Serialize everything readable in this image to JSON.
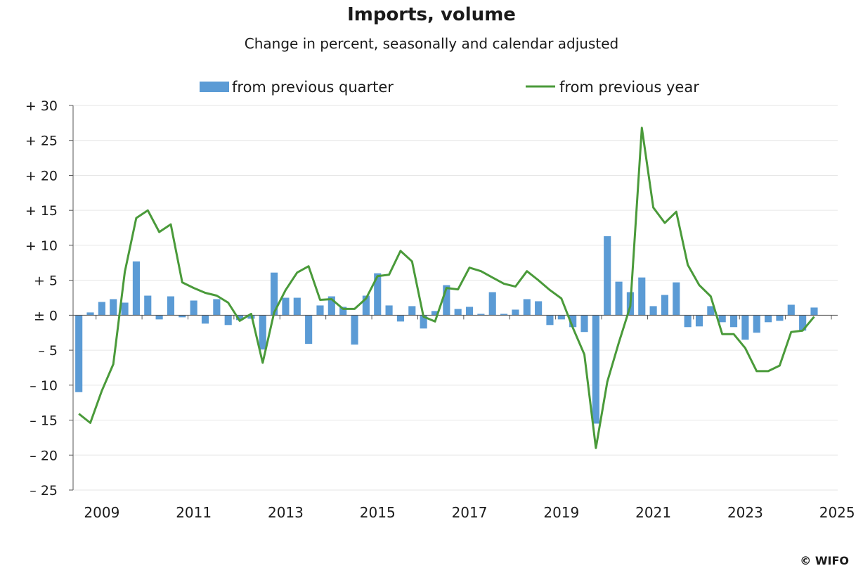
{
  "chart_data": {
    "type": "bar+line",
    "title": "Imports, volume",
    "subtitle": "Change in percent, seasonally and calendar adjusted",
    "legend_position": "top",
    "grid": true,
    "ylim": [
      -25,
      30
    ],
    "y_ticks": [
      {
        "value": 30,
        "label": "+ 30"
      },
      {
        "value": 25,
        "label": "+ 25"
      },
      {
        "value": 20,
        "label": "+ 20"
      },
      {
        "value": 15,
        "label": "+ 15"
      },
      {
        "value": 10,
        "label": "+ 10"
      },
      {
        "value": 5,
        "label": "+ 5"
      },
      {
        "value": 0,
        "label": "± 0"
      },
      {
        "value": -5,
        "label": "– 5"
      },
      {
        "value": -10,
        "label": "– 10"
      },
      {
        "value": -15,
        "label": "– 15"
      },
      {
        "value": -20,
        "label": "– 20"
      },
      {
        "value": -25,
        "label": "– 25"
      }
    ],
    "x_labels": [
      "2009",
      "2011",
      "2013",
      "2015",
      "2017",
      "2019",
      "2021",
      "2023",
      "2025"
    ],
    "start_quarter": "2008Q3",
    "series": [
      {
        "name": "from previous quarter",
        "kind": "bar",
        "color": "#5b9bd5",
        "values": [
          -11.0,
          0.4,
          1.9,
          2.3,
          1.8,
          7.7,
          2.8,
          -0.6,
          2.7,
          -0.3,
          2.1,
          -1.2,
          2.3,
          -1.4,
          -0.7,
          -0.5,
          -4.9,
          6.1,
          2.5,
          2.5,
          -4.1,
          1.4,
          2.7,
          1.2,
          -4.2,
          2.8,
          6.0,
          1.4,
          -0.9,
          1.3,
          -1.9,
          0.6,
          4.3,
          0.9,
          1.2,
          0.2,
          3.3,
          0.2,
          0.8,
          2.3,
          2.0,
          -1.4,
          -0.6,
          -1.7,
          -2.4,
          -15.5,
          11.3,
          4.8,
          3.3,
          5.4,
          1.3,
          2.9,
          4.7,
          -1.7,
          -1.6,
          1.3,
          -1.0,
          -1.7,
          -3.5,
          -2.5,
          -1.0,
          -0.8,
          1.5,
          -2.2,
          1.1
        ]
      },
      {
        "name": "from previous year",
        "kind": "line",
        "color": "#4a9a3a",
        "values": [
          -14.1,
          -15.4,
          -10.8,
          -7.0,
          6.2,
          13.9,
          15.0,
          11.9,
          13.0,
          4.7,
          3.9,
          3.2,
          2.8,
          1.8,
          -0.8,
          0.2,
          -6.8,
          0.4,
          3.6,
          6.1,
          7.0,
          2.2,
          2.3,
          0.9,
          0.9,
          2.4,
          5.6,
          5.8,
          9.2,
          7.7,
          -0.2,
          -0.9,
          3.9,
          3.7,
          6.8,
          6.3,
          5.4,
          4.5,
          4.1,
          6.3,
          5.0,
          3.6,
          2.4,
          -1.8,
          -5.6,
          -19.0,
          -9.5,
          -3.9,
          1.3,
          26.8,
          15.4,
          13.2,
          14.8,
          7.2,
          4.3,
          2.7,
          -2.7,
          -2.7,
          -4.7,
          -8.0,
          -8.0,
          -7.2,
          -2.4,
          -2.2,
          -0.2
        ]
      }
    ]
  },
  "copyright": "© WIFO"
}
